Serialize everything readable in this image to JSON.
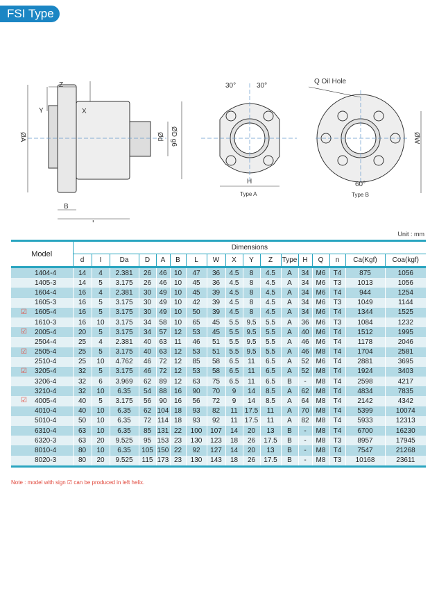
{
  "header": {
    "title": "FSI Type"
  },
  "drawing": {
    "side_labels": {
      "z": "Z",
      "y": "Y",
      "x": "X",
      "a": "ØA",
      "b": "B",
      "l": "L",
      "d": "Ød",
      "dg6": "ØD g6"
    },
    "type_a": {
      "angle_left": "30°",
      "angle_right": "30°",
      "h": "H",
      "caption": "Type A"
    },
    "type_b": {
      "oil_hole": "Q Oil Hole",
      "w": "ØW",
      "angle": "60°",
      "caption": "Type B"
    }
  },
  "unit": "Unit : mm",
  "table": {
    "model_header": "Model",
    "group_header": "Dimensions",
    "columns": [
      "d",
      "I",
      "Da",
      "D",
      "A",
      "B",
      "L",
      "W",
      "X",
      "Y",
      "Z",
      "Type",
      "H",
      "Q",
      "n",
      "Ca(Kgf)",
      "Coa(kgf)"
    ],
    "rows": [
      {
        "model": "1404-4",
        "left_helix": false,
        "values": [
          "14",
          "4",
          "2.381",
          "26",
          "46",
          "10",
          "47",
          "36",
          "4.5",
          "8",
          "4.5",
          "A",
          "34",
          "M6",
          "T4",
          "875",
          "1056"
        ]
      },
      {
        "model": "1405-3",
        "left_helix": false,
        "values": [
          "14",
          "5",
          "3.175",
          "26",
          "46",
          "10",
          "45",
          "36",
          "4.5",
          "8",
          "4.5",
          "A",
          "34",
          "M6",
          "T3",
          "1013",
          "1056"
        ]
      },
      {
        "model": "1604-4",
        "left_helix": false,
        "values": [
          "16",
          "4",
          "2.381",
          "30",
          "49",
          "10",
          "45",
          "39",
          "4.5",
          "8",
          "4.5",
          "A",
          "34",
          "M6",
          "T4",
          "944",
          "1254"
        ]
      },
      {
        "model": "1605-3",
        "left_helix": false,
        "values": [
          "16",
          "5",
          "3.175",
          "30",
          "49",
          "10",
          "42",
          "39",
          "4.5",
          "8",
          "4.5",
          "A",
          "34",
          "M6",
          "T3",
          "1049",
          "1144"
        ]
      },
      {
        "model": "1605-4",
        "left_helix": true,
        "values": [
          "16",
          "5",
          "3.175",
          "30",
          "49",
          "10",
          "50",
          "39",
          "4.5",
          "8",
          "4.5",
          "A",
          "34",
          "M6",
          "T4",
          "1344",
          "1525"
        ]
      },
      {
        "model": "1610-3",
        "left_helix": false,
        "values": [
          "16",
          "10",
          "3.175",
          "34",
          "58",
          "10",
          "65",
          "45",
          "5.5",
          "9.5",
          "5.5",
          "A",
          "36",
          "M6",
          "T3",
          "1084",
          "1232"
        ]
      },
      {
        "model": "2005-4",
        "left_helix": true,
        "values": [
          "20",
          "5",
          "3.175",
          "34",
          "57",
          "12",
          "53",
          "45",
          "5.5",
          "9.5",
          "5.5",
          "A",
          "40",
          "M6",
          "T4",
          "1512",
          "1995"
        ]
      },
      {
        "model": "2504-4",
        "left_helix": false,
        "values": [
          "25",
          "4",
          "2.381",
          "40",
          "63",
          "11",
          "46",
          "51",
          "5.5",
          "9.5",
          "5.5",
          "A",
          "46",
          "M6",
          "T4",
          "1178",
          "2046"
        ]
      },
      {
        "model": "2505-4",
        "left_helix": true,
        "values": [
          "25",
          "5",
          "3.175",
          "40",
          "63",
          "12",
          "53",
          "51",
          "5.5",
          "9.5",
          "5.5",
          "A",
          "46",
          "M8",
          "T4",
          "1704",
          "2581"
        ]
      },
      {
        "model": "2510-4",
        "left_helix": false,
        "values": [
          "25",
          "10",
          "4.762",
          "46",
          "72",
          "12",
          "85",
          "58",
          "6.5",
          "11",
          "6.5",
          "A",
          "52",
          "M6",
          "T4",
          "2881",
          "3695"
        ]
      },
      {
        "model": "3205-4",
        "left_helix": true,
        "values": [
          "32",
          "5",
          "3.175",
          "46",
          "72",
          "12",
          "53",
          "58",
          "6.5",
          "11",
          "6.5",
          "A",
          "52",
          "M8",
          "T4",
          "1924",
          "3403"
        ]
      },
      {
        "model": "3206-4",
        "left_helix": false,
        "values": [
          "32",
          "6",
          "3.969",
          "62",
          "89",
          "12",
          "63",
          "75",
          "6.5",
          "11",
          "6.5",
          "B",
          "-",
          "M8",
          "T4",
          "2598",
          "4217"
        ]
      },
      {
        "model": "3210-4",
        "left_helix": false,
        "values": [
          "32",
          "10",
          "6.35",
          "54",
          "88",
          "16",
          "90",
          "70",
          "9",
          "14",
          "8.5",
          "A",
          "62",
          "M8",
          "T4",
          "4834",
          "7835"
        ]
      },
      {
        "model": "4005-4",
        "left_helix": true,
        "values": [
          "40",
          "5",
          "3.175",
          "56",
          "90",
          "16",
          "56",
          "72",
          "9",
          "14",
          "8.5",
          "A",
          "64",
          "M8",
          "T4",
          "2142",
          "4342"
        ]
      },
      {
        "model": "4010-4",
        "left_helix": false,
        "values": [
          "40",
          "10",
          "6.35",
          "62",
          "104",
          "18",
          "93",
          "82",
          "11",
          "17.5",
          "11",
          "A",
          "70",
          "M8",
          "T4",
          "5399",
          "10074"
        ]
      },
      {
        "model": "5010-4",
        "left_helix": false,
        "values": [
          "50",
          "10",
          "6.35",
          "72",
          "114",
          "18",
          "93",
          "92",
          "11",
          "17.5",
          "11",
          "A",
          "82",
          "M8",
          "T4",
          "5933",
          "12313"
        ]
      },
      {
        "model": "6310-4",
        "left_helix": false,
        "values": [
          "63",
          "10",
          "6.35",
          "85",
          "131",
          "22",
          "100",
          "107",
          "14",
          "20",
          "13",
          "B",
          "-",
          "M8",
          "T4",
          "6700",
          "16230"
        ]
      },
      {
        "model": "6320-3",
        "left_helix": false,
        "values": [
          "63",
          "20",
          "9.525",
          "95",
          "153",
          "23",
          "130",
          "123",
          "18",
          "26",
          "17.5",
          "B",
          "-",
          "M8",
          "T3",
          "8957",
          "17945"
        ]
      },
      {
        "model": "8010-4",
        "left_helix": false,
        "values": [
          "80",
          "10",
          "6.35",
          "105",
          "150",
          "22",
          "92",
          "127",
          "14",
          "20",
          "13",
          "B",
          "-",
          "M8",
          "T4",
          "7547",
          "21268"
        ]
      },
      {
        "model": "8020-3",
        "left_helix": false,
        "values": [
          "80",
          "20",
          "9.525",
          "115",
          "173",
          "23",
          "130",
          "143",
          "18",
          "26",
          "17.5",
          "B",
          "-",
          "M8",
          "T3",
          "10168",
          "23611"
        ]
      }
    ]
  },
  "note": "Note : model with sign ☑ can be produced in left helix.",
  "colors": {
    "accent": "#1b86c4",
    "table_border": "#2aa5c0",
    "row_dark": "#b3dae5",
    "row_light": "#e4f1f5",
    "note": "#e0463a"
  }
}
